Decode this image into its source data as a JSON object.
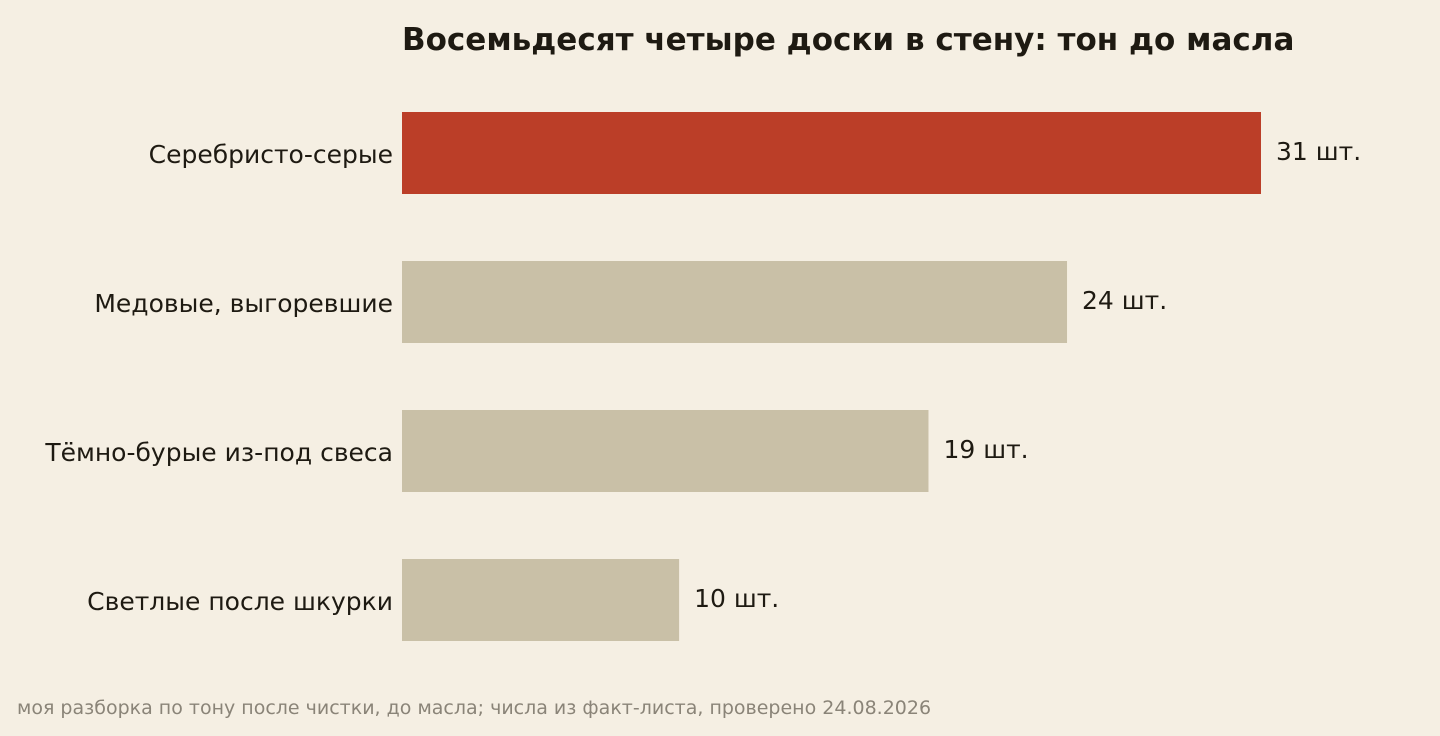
{
  "colors": {
    "background": "#f5efe3",
    "highlight_bar": "#bb3e28",
    "default_bar": "#c9c0a7",
    "text": "#1e1a12",
    "note": "#8a8478"
  },
  "chart_data": {
    "type": "bar",
    "orientation": "horizontal",
    "title": "Восемьдесят четыре доски в стену: тон до масла",
    "categories": [
      "Серебристо-серые",
      "Медовые, выгоревшие",
      "Тёмно-бурые из-под свеса",
      "Светлые после шкурки"
    ],
    "values": [
      31,
      24,
      19,
      10
    ],
    "value_labels": [
      "31 шт.",
      "24 шт.",
      "19 шт.",
      "10 шт."
    ],
    "highlighted_category": "Серебристо-серые",
    "xlim": [
      0,
      31
    ],
    "grid": false,
    "legend": "none"
  },
  "footnote": "моя разборка по тону после чистки, до масла; числа из факт-листа, проверено 24.08.2026"
}
